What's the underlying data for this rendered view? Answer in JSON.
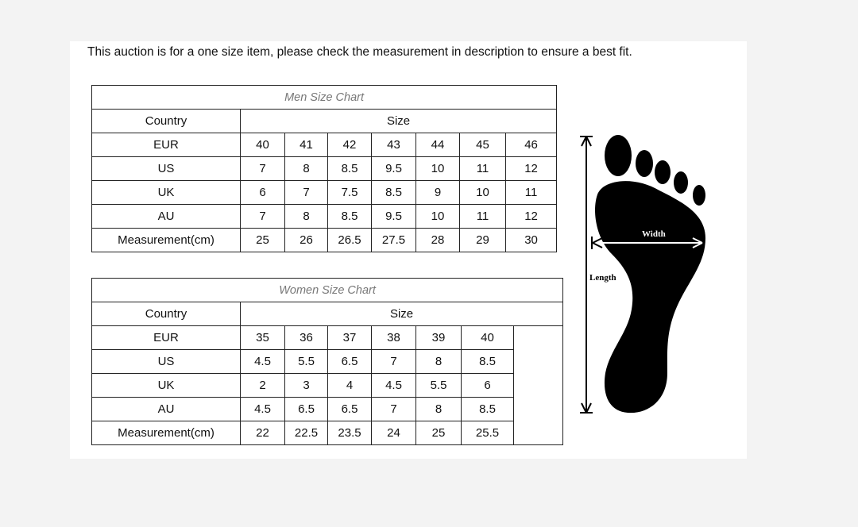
{
  "notice": "This auction is for a one size item, please check the measurement in description to ensure a best fit.",
  "men": {
    "title": "Men Size Chart",
    "country_header": "Country",
    "size_header": "Size",
    "rows": [
      {
        "label": "EUR",
        "values": [
          "40",
          "41",
          "42",
          "43",
          "44",
          "45",
          "46"
        ]
      },
      {
        "label": "US",
        "values": [
          "7",
          "8",
          "8.5",
          "9.5",
          "10",
          "11",
          "12"
        ]
      },
      {
        "label": "UK",
        "values": [
          "6",
          "7",
          "7.5",
          "8.5",
          "9",
          "10",
          "11"
        ]
      },
      {
        "label": "AU",
        "values": [
          "7",
          "8",
          "8.5",
          "9.5",
          "10",
          "11",
          "12"
        ]
      },
      {
        "label": "Measurement(cm)",
        "values": [
          "25",
          "26",
          "26.5",
          "27.5",
          "28",
          "29",
          "30"
        ]
      }
    ]
  },
  "women": {
    "title": "Women Size Chart",
    "country_header": "Country",
    "size_header": "Size",
    "rows": [
      {
        "label": "EUR",
        "values": [
          "35",
          "36",
          "37",
          "38",
          "39",
          "40"
        ]
      },
      {
        "label": "US",
        "values": [
          "4.5",
          "5.5",
          "6.5",
          "7",
          "8",
          "8.5"
        ]
      },
      {
        "label": "UK",
        "values": [
          "2",
          "3",
          "4",
          "4.5",
          "5.5",
          "6"
        ]
      },
      {
        "label": "AU",
        "values": [
          "4.5",
          "6.5",
          "6.5",
          "7",
          "8",
          "8.5"
        ]
      },
      {
        "label": "Measurement(cm)",
        "values": [
          "22",
          "22.5",
          "23.5",
          "24",
          "25",
          "25.5"
        ]
      }
    ]
  },
  "diagram": {
    "width_label": "Width",
    "length_label": "Length"
  }
}
